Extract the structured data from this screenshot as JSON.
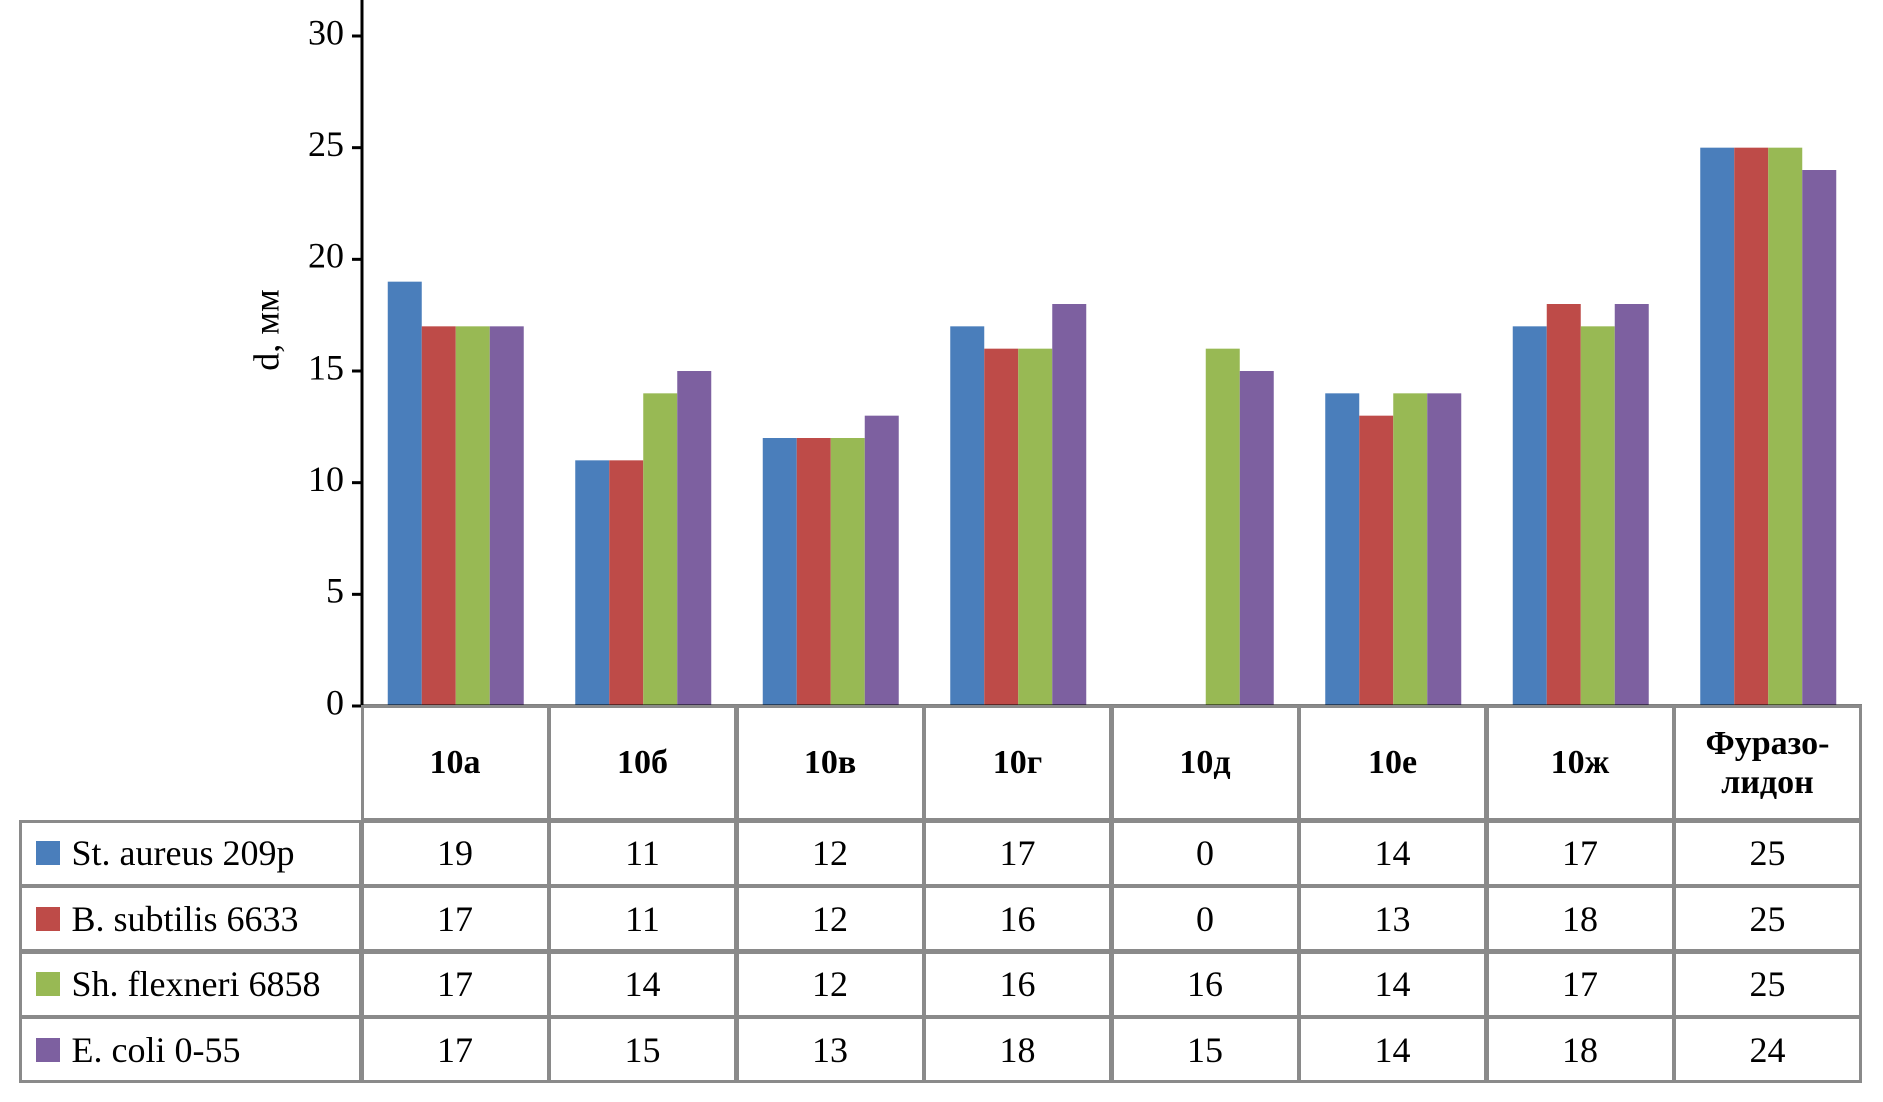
{
  "chart_data": {
    "type": "bar",
    "y_label": "d, мм",
    "categories": [
      "10а",
      "10б",
      "10в",
      "10г",
      "10д",
      "10е",
      "10ж",
      "Фуразо-лидон"
    ],
    "series": [
      {
        "name": "St. aureus 209р",
        "color": "#4a7ebb",
        "values": [
          19,
          11,
          12,
          17,
          0,
          14,
          17,
          25
        ]
      },
      {
        "name": "B. subtilis 6633",
        "color": "#be4b48",
        "values": [
          17,
          11,
          12,
          16,
          0,
          13,
          18,
          25
        ]
      },
      {
        "name": "Sh. flexneri 6858",
        "color": "#98b954",
        "values": [
          17,
          14,
          12,
          16,
          16,
          14,
          17,
          25
        ]
      },
      {
        "name": "E. coli 0-55",
        "color": "#7d60a0",
        "values": [
          17,
          15,
          13,
          18,
          15,
          14,
          18,
          24
        ]
      }
    ],
    "ylim": [
      0,
      30
    ],
    "yticks": [
      0,
      5,
      10,
      15,
      20,
      25,
      30
    ]
  }
}
